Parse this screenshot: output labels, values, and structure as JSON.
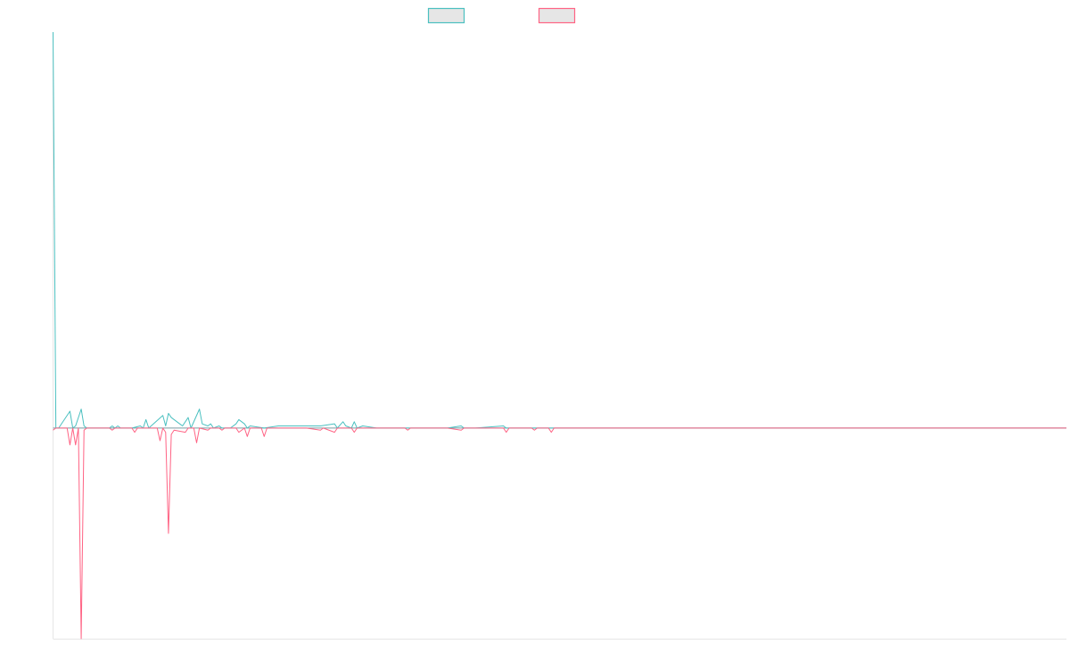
{
  "chart_data": {
    "type": "line",
    "title": "",
    "xlabel": "",
    "ylabel": "",
    "grid": false,
    "legend_position": "top-center",
    "ylim": [
      -100,
      188
    ],
    "xlim": [
      0,
      360
    ],
    "series": [
      {
        "color": "#4bc0c0",
        "points": [
          [
            0,
            188
          ],
          [
            1,
            0
          ],
          [
            2,
            0
          ],
          [
            6,
            8
          ],
          [
            7,
            0
          ],
          [
            8,
            1
          ],
          [
            10,
            9
          ],
          [
            11,
            1
          ],
          [
            12,
            0
          ],
          [
            20,
            0
          ],
          [
            21,
            1
          ],
          [
            22,
            0
          ],
          [
            23,
            1
          ],
          [
            24,
            0
          ],
          [
            28,
            0
          ],
          [
            31,
            1
          ],
          [
            32,
            0
          ],
          [
            33,
            4
          ],
          [
            34,
            0
          ],
          [
            39,
            6
          ],
          [
            40,
            1
          ],
          [
            41,
            7
          ],
          [
            42,
            5
          ],
          [
            45,
            2
          ],
          [
            46,
            1
          ],
          [
            48,
            5
          ],
          [
            49,
            0
          ],
          [
            52,
            9
          ],
          [
            53,
            2
          ],
          [
            55,
            1
          ],
          [
            56,
            2
          ],
          [
            57,
            0
          ],
          [
            59,
            1
          ],
          [
            60,
            0
          ],
          [
            63,
            0
          ],
          [
            65,
            2
          ],
          [
            66,
            4
          ],
          [
            68,
            2
          ],
          [
            69,
            0
          ],
          [
            70,
            1
          ],
          [
            75,
            0
          ],
          [
            80,
            1
          ],
          [
            85,
            1
          ],
          [
            90,
            1
          ],
          [
            95,
            1
          ],
          [
            100,
            2
          ],
          [
            101,
            0
          ],
          [
            103,
            3
          ],
          [
            104,
            1
          ],
          [
            106,
            0
          ],
          [
            107,
            3
          ],
          [
            108,
            0
          ],
          [
            110,
            1
          ],
          [
            115,
            0
          ],
          [
            120,
            0
          ],
          [
            135,
            0
          ],
          [
            140,
            0
          ],
          [
            145,
            1
          ],
          [
            146,
            0
          ],
          [
            150,
            0
          ],
          [
            160,
            1
          ],
          [
            161,
            0
          ],
          [
            170,
            0
          ],
          [
            180,
            0
          ],
          [
            200,
            0
          ],
          [
            250,
            0
          ],
          [
            300,
            0
          ],
          [
            360,
            0
          ]
        ]
      },
      {
        "color": "#ff6384",
        "points": [
          [
            0,
            -1
          ],
          [
            1,
            0
          ],
          [
            5,
            0
          ],
          [
            6,
            -8
          ],
          [
            7,
            0
          ],
          [
            8,
            -8
          ],
          [
            9,
            0
          ],
          [
            10,
            -100
          ],
          [
            11,
            -1
          ],
          [
            12,
            0
          ],
          [
            20,
            0
          ],
          [
            21,
            -1
          ],
          [
            22,
            0
          ],
          [
            28,
            0
          ],
          [
            29,
            -2
          ],
          [
            30,
            0
          ],
          [
            37,
            0
          ],
          [
            38,
            -6
          ],
          [
            39,
            0
          ],
          [
            40,
            -2
          ],
          [
            41,
            -50
          ],
          [
            42,
            -3
          ],
          [
            43,
            -1
          ],
          [
            47,
            -2
          ],
          [
            48,
            0
          ],
          [
            50,
            0
          ],
          [
            51,
            -7
          ],
          [
            52,
            0
          ],
          [
            55,
            -1
          ],
          [
            56,
            0
          ],
          [
            59,
            0
          ],
          [
            60,
            -1
          ],
          [
            61,
            0
          ],
          [
            65,
            0
          ],
          [
            66,
            -2
          ],
          [
            68,
            0
          ],
          [
            69,
            -4
          ],
          [
            70,
            0
          ],
          [
            74,
            0
          ],
          [
            75,
            -4
          ],
          [
            76,
            0
          ],
          [
            90,
            0
          ],
          [
            95,
            -1
          ],
          [
            96,
            0
          ],
          [
            100,
            -2
          ],
          [
            101,
            0
          ],
          [
            106,
            0
          ],
          [
            107,
            -2
          ],
          [
            108,
            0
          ],
          [
            110,
            0
          ],
          [
            125,
            0
          ],
          [
            126,
            -1
          ],
          [
            127,
            0
          ],
          [
            135,
            0
          ],
          [
            140,
            0
          ],
          [
            145,
            -1
          ],
          [
            146,
            0
          ],
          [
            160,
            0
          ],
          [
            161,
            -2
          ],
          [
            162,
            0
          ],
          [
            170,
            0
          ],
          [
            171,
            -1
          ],
          [
            172,
            0
          ],
          [
            176,
            0
          ],
          [
            177,
            -2
          ],
          [
            178,
            0
          ],
          [
            200,
            0
          ],
          [
            250,
            0
          ],
          [
            300,
            0
          ],
          [
            360,
            0
          ]
        ]
      }
    ]
  }
}
